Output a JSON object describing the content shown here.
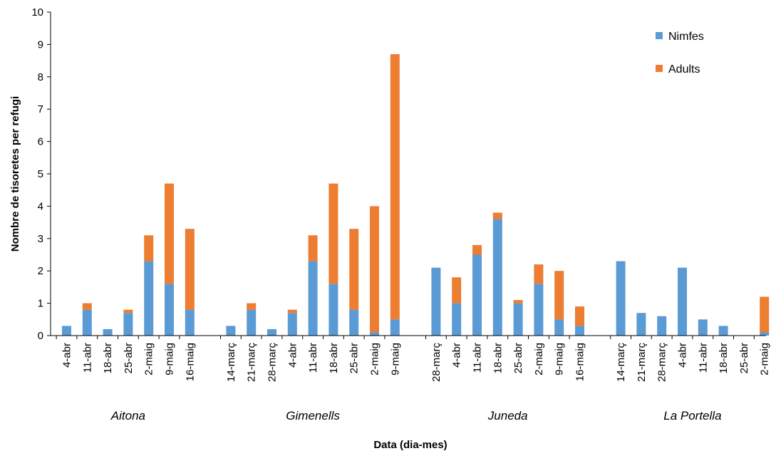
{
  "chart_data": {
    "type": "bar",
    "stacked": true,
    "xlabel": "Data (dia-mes)",
    "ylabel": "Nombre de tisoretes per refugi",
    "ylim": [
      0,
      10
    ],
    "yticks": [
      0,
      1,
      2,
      3,
      4,
      5,
      6,
      7,
      8,
      9,
      10
    ],
    "grid": false,
    "legend_position": "top-right",
    "colors": {
      "Nimfes": "#5B9BD5",
      "Adults": "#ED7D31"
    },
    "series_names": [
      "Nimfes",
      "Adults"
    ],
    "groups": [
      {
        "name": "Aitona",
        "categories": [
          "4-abr",
          "11-abr",
          "18-abr",
          "25-abr",
          "2-maig",
          "9-maig",
          "16-maig"
        ],
        "Nimfes": [
          0.3,
          0.8,
          0.2,
          0.7,
          2.3,
          1.6,
          0.8
        ],
        "Adults": [
          0,
          0.2,
          0,
          0.1,
          0.8,
          3.1,
          2.5
        ]
      },
      {
        "name": "Gimenells",
        "categories": [
          "14-març",
          "21-març",
          "28-març",
          "4-abr",
          "11-abr",
          "18-abr",
          "25-abr",
          "2-maig",
          "9-maig"
        ],
        "Nimfes": [
          0.3,
          0.8,
          0.2,
          0.7,
          2.3,
          1.6,
          0.8,
          0.1,
          0.5
        ],
        "Adults": [
          0,
          0.2,
          0,
          0.1,
          0.8,
          3.1,
          2.5,
          3.9,
          8.2
        ]
      },
      {
        "name": "Juneda",
        "categories": [
          "28-març",
          "4-abr",
          "11-abr",
          "18-abr",
          "25-abr",
          "2-maig",
          "9-maig",
          "16-maig"
        ],
        "Nimfes": [
          2.1,
          1.0,
          2.5,
          3.6,
          1.0,
          1.6,
          0.5,
          0.3
        ],
        "Adults": [
          0,
          0.8,
          0.3,
          0.2,
          0.1,
          0.6,
          1.5,
          0.6
        ]
      },
      {
        "name": "La Portella",
        "categories": [
          "14-març",
          "21-març",
          "28-març",
          "4-abr",
          "11-abr",
          "18-abr",
          "25-abr",
          "2-maig"
        ],
        "Nimfes": [
          2.3,
          0.7,
          0.6,
          2.1,
          0.5,
          0.3,
          0,
          0.1
        ],
        "Adults": [
          0,
          0,
          0,
          0,
          0,
          0,
          0,
          1.1
        ]
      }
    ]
  }
}
